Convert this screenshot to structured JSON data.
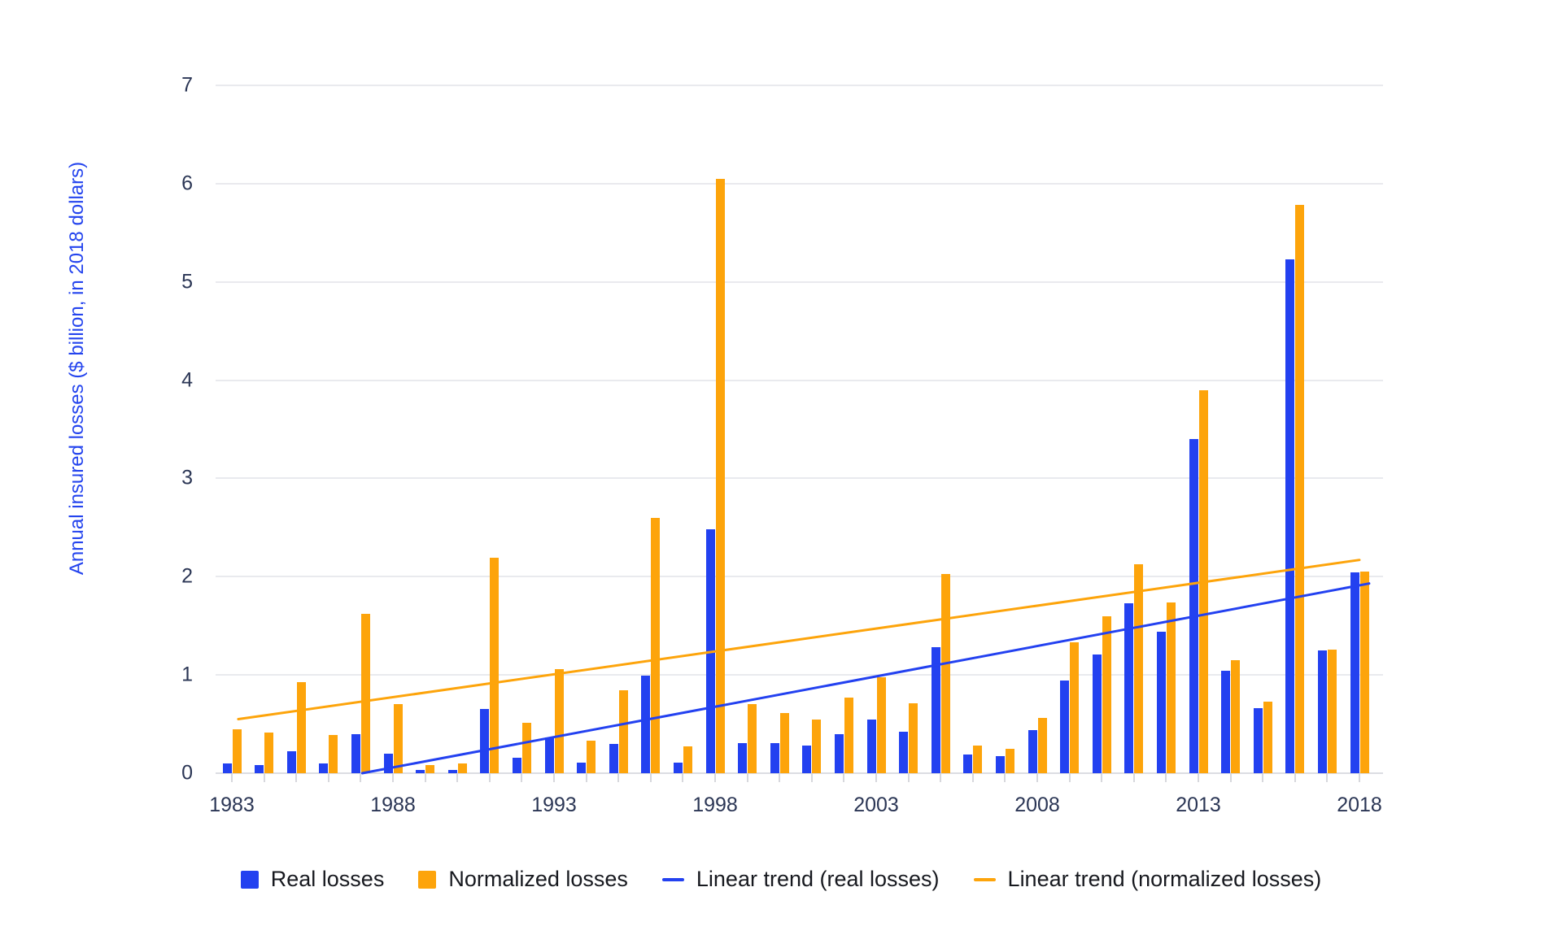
{
  "chart_data": {
    "type": "bar",
    "title": "",
    "ylabel": "Annual insured losses ($ billion, in 2018 dollars)",
    "xlabel": "",
    "ylim": [
      0,
      7
    ],
    "y_ticks": [
      0,
      1,
      2,
      3,
      4,
      5,
      6,
      7
    ],
    "grid": "horizontal-only",
    "legend_position": "bottom-center",
    "categories": [
      1983,
      1984,
      1985,
      1986,
      1987,
      1988,
      1989,
      1990,
      1991,
      1992,
      1993,
      1994,
      1995,
      1996,
      1997,
      1998,
      1999,
      2000,
      2001,
      2002,
      2003,
      2004,
      2005,
      2006,
      2007,
      2008,
      2009,
      2010,
      2011,
      2012,
      2013,
      2014,
      2015,
      2016,
      2017,
      2018
    ],
    "x_axis_tick_labels": [
      "1983",
      "1988",
      "1993",
      "1998",
      "2003",
      "2008",
      "2013",
      "2018"
    ],
    "series": [
      {
        "name": "Real losses",
        "color": "#2341f0",
        "values": [
          0.1,
          0.08,
          0.22,
          0.1,
          0.4,
          0.2,
          0.03,
          0.03,
          0.65,
          0.16,
          0.36,
          0.11,
          0.3,
          0.99,
          0.11,
          2.48,
          0.31,
          0.31,
          0.28,
          0.4,
          0.55,
          0.42,
          1.28,
          0.19,
          0.17,
          0.44,
          0.94,
          1.21,
          1.73,
          1.44,
          3.4,
          1.04,
          0.66,
          5.23,
          1.25,
          2.04
        ]
      },
      {
        "name": "Normalized losses",
        "color": "#fda40b",
        "values": [
          0.45,
          0.41,
          0.93,
          0.39,
          1.62,
          0.7,
          0.08,
          0.1,
          2.19,
          0.51,
          1.06,
          0.33,
          0.84,
          2.6,
          0.27,
          6.05,
          0.7,
          0.61,
          0.55,
          0.77,
          0.98,
          0.71,
          2.03,
          0.28,
          0.25,
          0.56,
          1.33,
          1.6,
          2.13,
          1.74,
          3.9,
          1.15,
          0.73,
          5.78,
          1.26,
          2.05
        ]
      }
    ],
    "trends": [
      {
        "name": "Linear trend (real losses)",
        "color": "#2341f0",
        "start_year": 1983,
        "start_value": -0.25,
        "end_year": 2018.3,
        "end_value": 1.93,
        "clip_at_zero": true
      },
      {
        "name": "Linear trend (normalized losses)",
        "color": "#fda40b",
        "start_year": 1983.2,
        "start_value": 0.55,
        "end_year": 2018,
        "end_value": 2.17,
        "clip_at_zero": false
      }
    ]
  }
}
